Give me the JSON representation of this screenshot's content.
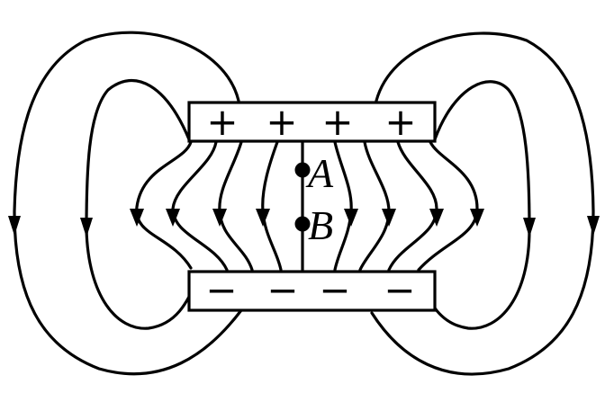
{
  "plates": {
    "top_signs": [
      "+",
      "+",
      "+",
      "+"
    ],
    "bottom_signs": [
      "−",
      "−",
      "−",
      "−"
    ]
  },
  "points": [
    {
      "label": "A"
    },
    {
      "label": "B"
    }
  ],
  "colors": {
    "ink": "#000000",
    "background": "#ffffff"
  }
}
